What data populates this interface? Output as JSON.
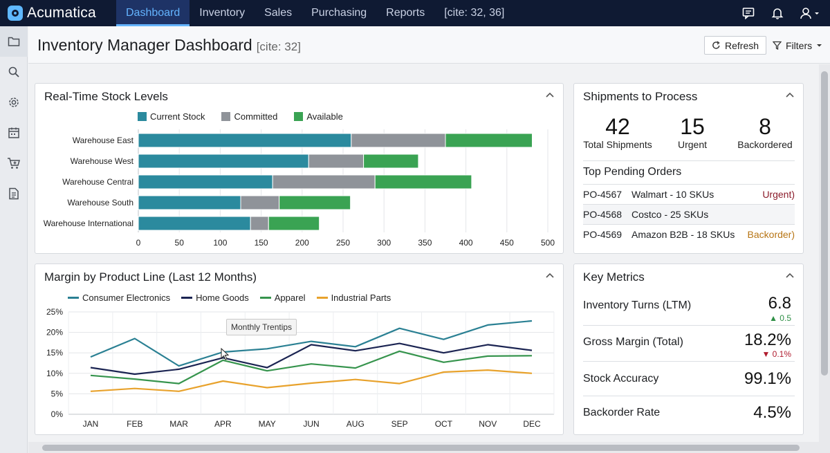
{
  "app": {
    "name": "Acumatica"
  },
  "nav": {
    "items": [
      "Dashboard",
      "Inventory",
      "Sales",
      "Purchasing",
      "Reports"
    ],
    "active": 0,
    "cite": "[cite: 32, 36]"
  },
  "page": {
    "title": "Inventory Manager Dashboard",
    "cite": "[cite: 32]",
    "refresh_label": "Refresh",
    "filters_label": "Filters"
  },
  "stock": {
    "title": "Real-Time Stock Levels",
    "legend": [
      {
        "label": "Current Stock",
        "color": "#2b8a9e"
      },
      {
        "label": "Committed",
        "color": "#8f9399"
      },
      {
        "label": "Available",
        "color": "#3aa353"
      }
    ],
    "chart_data": {
      "type": "bar",
      "orientation": "horizontal",
      "stacked": true,
      "categories": [
        "Warehouse East",
        "Warehouse West",
        "Warehouse Central",
        "Warehouse South",
        "Warehouse International"
      ],
      "series": [
        {
          "name": "Current Stock",
          "values": [
            260,
            208,
            164,
            125,
            137
          ]
        },
        {
          "name": "Committed",
          "values": [
            115,
            67,
            125,
            47,
            22
          ]
        },
        {
          "name": "Available",
          "values": [
            106,
            67,
            118,
            87,
            62
          ]
        }
      ],
      "xlim": [
        0,
        500
      ],
      "xticks": [
        0,
        50,
        100,
        150,
        200,
        250,
        300,
        350,
        400,
        450,
        500
      ],
      "grid": true
    }
  },
  "margin": {
    "title": "Margin by Product Line (Last 12 Months)",
    "tooltip": "Monthly Trentips",
    "legend": [
      {
        "label": "Consumer Electronics",
        "color": "#2a8093"
      },
      {
        "label": "Home Goods",
        "color": "#1b2452"
      },
      {
        "label": "Apparel",
        "color": "#36944d"
      },
      {
        "label": "Industrial Parts",
        "color": "#e8a22c"
      }
    ],
    "chart_data": {
      "type": "line",
      "categories": [
        "JAN",
        "FEB",
        "MAR",
        "APR",
        "MAY",
        "JUN",
        "AUG",
        "SEP",
        "OCT",
        "NOV",
        "DEC"
      ],
      "series": [
        {
          "name": "Consumer Electronics",
          "values": [
            14,
            18.5,
            11.8,
            15.2,
            16,
            17.8,
            16.5,
            21,
            18.3,
            21.8,
            22.8
          ]
        },
        {
          "name": "Home Goods",
          "values": [
            11.4,
            9.8,
            11,
            13.8,
            11.4,
            17,
            15.5,
            17.3,
            15,
            17,
            15.6
          ]
        },
        {
          "name": "Apparel",
          "values": [
            9.5,
            8.6,
            7.5,
            13.2,
            10.6,
            12.3,
            11.3,
            15.4,
            12.7,
            14.2,
            14.3
          ]
        },
        {
          "name": "Industrial Parts",
          "values": [
            5.6,
            6.3,
            5.6,
            8.1,
            6.5,
            7.6,
            8.5,
            7.5,
            10.3,
            10.8,
            10
          ]
        }
      ],
      "ylim": [
        0,
        25
      ],
      "yticks": [
        "0%",
        "5%",
        "10%",
        "15%",
        "20%",
        "25%"
      ],
      "grid": true
    }
  },
  "shipments": {
    "title": "Shipments to Process",
    "stats": [
      {
        "value": "42",
        "label": "Total Shipments"
      },
      {
        "value": "15",
        "label": "Urgent"
      },
      {
        "value": "8",
        "label": "Backordered"
      }
    ],
    "orders_title": "Top Pending Orders",
    "orders": [
      {
        "id": "PO-4567",
        "desc": "Walmart - 10 SKUs",
        "status": "Urgent)",
        "status_color": "#8b1b2a"
      },
      {
        "id": "PO-4568",
        "desc": "Costco - 25 SKUs",
        "status": "",
        "status_color": "#222"
      },
      {
        "id": "PO-4569",
        "desc": "Amazon B2B - 18 SKUs",
        "status": "Backorder)",
        "status_color": "#b77515"
      }
    ]
  },
  "metrics": {
    "title": "Key Metrics",
    "items": [
      {
        "label": "Inventory Turns (LTM)",
        "value": "6.8",
        "delta": "▲ 0.5",
        "delta_color": "#2f8f46"
      },
      {
        "label": "Gross Margin (Total)",
        "value": "18.2%",
        "delta": "▼ 0.1%",
        "delta_color": "#b01c2e"
      },
      {
        "label": "Stock Accuracy",
        "value": "99.1%",
        "delta": "",
        "delta_color": "#222"
      },
      {
        "label": "Backorder Rate",
        "value": "4.5%",
        "delta": "",
        "delta_color": "#222"
      }
    ]
  }
}
